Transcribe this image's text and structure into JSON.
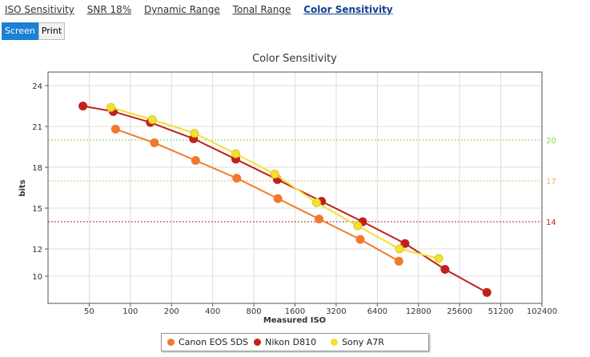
{
  "tabs": [
    "ISO Sensitivity",
    "SNR 18%",
    "Dynamic Range",
    "Tonal Range",
    "Color Sensitivity"
  ],
  "active_tab": 4,
  "modes": [
    "Screen",
    "Print"
  ],
  "active_mode": 0,
  "colors": {
    "canon": "#f07a2a",
    "nikon": "#c0211a",
    "sony": "#f4e034",
    "sony_edge": "#e0c81a",
    "grid": "#dddddd",
    "ref_green": "#7ed957",
    "ref_orange": "#f4b45c",
    "ref_red": "#b5261e"
  },
  "chart_data": {
    "type": "line",
    "title": "Color Sensitivity",
    "xlabel": "Measured ISO",
    "ylabel": "bits",
    "x_scale": "log2",
    "x_ticks": [
      50,
      100,
      200,
      400,
      800,
      1600,
      3200,
      6400,
      12800,
      25600,
      51200,
      102400
    ],
    "x_tick_labels": [
      "50",
      "100",
      "200",
      "400",
      "800",
      "1600",
      "3200",
      "6400",
      "12800",
      "25600",
      "51200",
      "102400"
    ],
    "xlim": [
      25,
      102400
    ],
    "y_ticks": [
      10,
      12,
      15,
      18,
      21,
      24
    ],
    "ylim": [
      8,
      25
    ],
    "reference_lines": [
      {
        "value": 20,
        "label": "20",
        "color": "#7ed957"
      },
      {
        "value": 17,
        "label": "17",
        "color": "#f4b45c"
      },
      {
        "value": 14,
        "label": "14",
        "color": "#b5261e"
      }
    ],
    "series": [
      {
        "name": "Canon EOS 5DS",
        "color": "#f07a2a",
        "x": [
          78,
          150,
          300,
          600,
          1200,
          2400,
          4800,
          9200
        ],
        "y": [
          20.8,
          19.8,
          18.5,
          17.2,
          15.7,
          14.2,
          12.7,
          11.1
        ]
      },
      {
        "name": "Nikon D810",
        "color": "#c0211a",
        "x": [
          45,
          75,
          140,
          290,
          590,
          1190,
          2500,
          5000,
          10200,
          20000,
          40500
        ],
        "y": [
          22.5,
          22.1,
          21.3,
          20.1,
          18.6,
          17.1,
          15.5,
          14.0,
          12.4,
          10.5,
          8.8
        ]
      },
      {
        "name": "Sony A7R",
        "color": "#f4e034",
        "x": [
          72,
          145,
          295,
          590,
          1140,
          2300,
          4600,
          9300,
          18000
        ],
        "y": [
          22.4,
          21.5,
          20.5,
          19.0,
          17.5,
          15.4,
          13.7,
          12.0,
          11.3
        ]
      }
    ]
  }
}
